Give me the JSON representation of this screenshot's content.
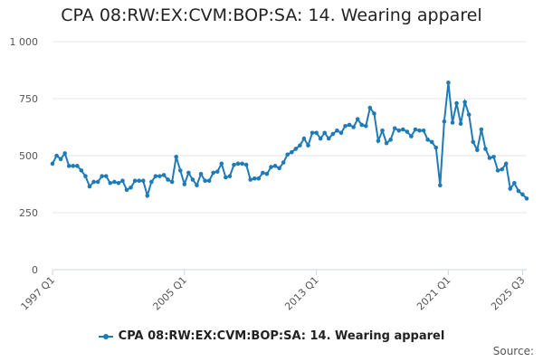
{
  "title": "CPA 08:RW:EX:CVM:BOP:SA: 14. Wearing apparel",
  "credits": "Source:",
  "legend_label": "CPA 08:RW:EX:CVM:BOP:SA: 14. Wearing apparel",
  "series_color": "#1f7bb6",
  "chart_data": {
    "type": "line",
    "title": "CPA 08:RW:EX:CVM:BOP:SA: 14. Wearing apparel",
    "xlabel": "",
    "ylabel": "",
    "ylim": [
      0,
      1000
    ],
    "yticks": [
      0,
      250,
      500,
      750,
      1000
    ],
    "ytick_labels": [
      "0",
      "250",
      "500",
      "750",
      "1 000"
    ],
    "xtick_labels": [
      "1997 Q1",
      "2005 Q1",
      "2013 Q1",
      "2021 Q1",
      "2025 Q3"
    ],
    "x_start": "1997 Q1",
    "x_end": "2025 Q3",
    "grid": "horizontal",
    "legend": "bottom",
    "series": [
      {
        "name": "CPA 08:RW:EX:CVM:BOP:SA: 14. Wearing apparel",
        "values": [
          465,
          500,
          485,
          510,
          455,
          455,
          455,
          435,
          410,
          365,
          385,
          385,
          410,
          410,
          380,
          385,
          380,
          390,
          350,
          360,
          390,
          390,
          390,
          325,
          385,
          410,
          410,
          415,
          395,
          385,
          495,
          435,
          375,
          425,
          395,
          370,
          420,
          390,
          390,
          425,
          430,
          465,
          405,
          410,
          460,
          465,
          465,
          460,
          395,
          400,
          400,
          425,
          420,
          450,
          455,
          445,
          470,
          505,
          515,
          530,
          545,
          575,
          545,
          600,
          600,
          575,
          600,
          575,
          595,
          610,
          600,
          630,
          635,
          625,
          660,
          635,
          630,
          710,
          685,
          565,
          610,
          555,
          570,
          620,
          610,
          615,
          605,
          585,
          615,
          610,
          610,
          570,
          560,
          535,
          370,
          650,
          820,
          645,
          730,
          640,
          735,
          680,
          560,
          525,
          615,
          530,
          490,
          495,
          435,
          440,
          465,
          355,
          380,
          345,
          330,
          312
        ]
      }
    ]
  }
}
